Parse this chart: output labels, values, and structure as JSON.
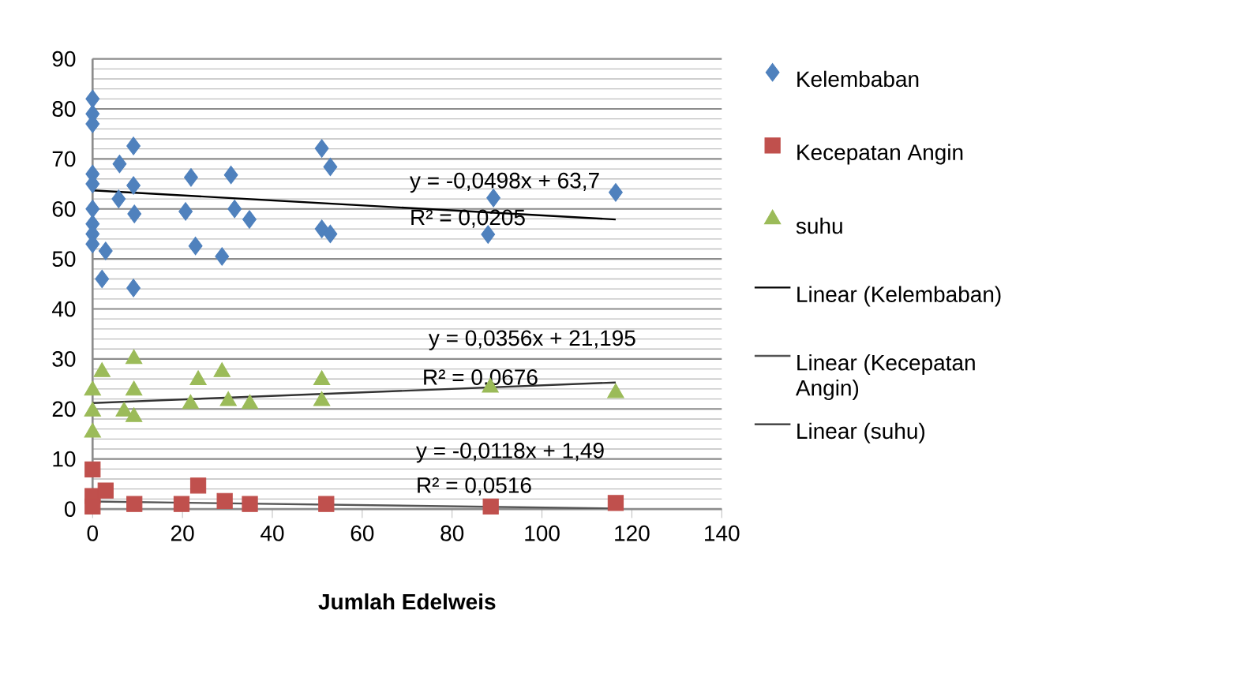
{
  "chart_data": {
    "type": "scatter",
    "xlabel": "Jumlah Edelweis",
    "xlim": [
      0,
      140
    ],
    "ylim": [
      0,
      90
    ],
    "xticks": [
      0,
      20,
      40,
      60,
      80,
      100,
      120,
      140
    ],
    "yticks": [
      0,
      10,
      20,
      30,
      40,
      50,
      60,
      70,
      80,
      90
    ],
    "grid": "y",
    "legend": "right",
    "series": [
      {
        "name": "Kelembaban",
        "marker": "diamond",
        "color": "#4f81bd",
        "x": [
          0,
          0,
          0,
          0,
          0,
          0,
          0,
          0,
          0,
          2.9,
          2.1,
          6,
          9.1,
          9.1,
          5.8,
          9.3,
          9.1,
          21.9,
          20.7,
          22.9,
          30.8,
          28.8,
          31.6,
          34.9,
          51,
          52.9,
          51,
          52.9,
          89.2,
          88,
          116.4
        ],
        "values": [
          82,
          79,
          77,
          67,
          65,
          60,
          57,
          55,
          53,
          51.6,
          46,
          69,
          72.6,
          64.7,
          62,
          59,
          44.2,
          66.3,
          59.5,
          52.6,
          66.8,
          50.5,
          60,
          57.9,
          72.1,
          68.4,
          56,
          55,
          62.2,
          54.9,
          63.3
        ]
      },
      {
        "name": "Kecepatan Angin",
        "marker": "square",
        "color": "#c0504d",
        "x": [
          0,
          0,
          2.9,
          9.3,
          19.8,
          23.5,
          29.4,
          35,
          52,
          0,
          88.6,
          116.4
        ],
        "values": [
          7.9,
          2.6,
          3.7,
          1,
          1,
          4.7,
          1.6,
          1,
          1,
          0.5,
          0.5,
          1.2
        ]
      },
      {
        "name": "suhu",
        "marker": "triangle",
        "color": "#9bbb59",
        "x": [
          2.1,
          0,
          0,
          0,
          9.2,
          9.2,
          7,
          9.2,
          23.5,
          21.8,
          28.8,
          30.2,
          35,
          51,
          51,
          88.5,
          116.4
        ],
        "values": [
          27.4,
          23.7,
          19.5,
          15.3,
          30,
          23.7,
          19.5,
          18.4,
          25.8,
          21,
          27.4,
          21.6,
          21,
          25.8,
          21.6,
          24.3,
          23.2
        ]
      },
      {
        "name": "Linear (Kelembaban)",
        "type": "line",
        "marker": "none",
        "color": "#000000",
        "x": [
          0,
          116.4
        ],
        "values": [
          63.7,
          57.9
        ]
      },
      {
        "name": "Linear (Kecepatan Angin)",
        "type": "line",
        "marker": "none",
        "color": "#555555",
        "x": [
          0,
          116.4
        ],
        "values": [
          1.5,
          0.1
        ]
      },
      {
        "name": "Linear (suhu)",
        "type": "line",
        "marker": "none",
        "color": "#333333",
        "x": [
          0,
          116.4
        ],
        "values": [
          21.2,
          25.3
        ]
      }
    ],
    "annotations": [
      "y = -0,0498x + 63,7",
      "R² = 0,0205",
      "y = 0,0356x + 21,195",
      "R² = 0,0676",
      "y = -0,0118x + 1,49",
      "R² = 0,0516"
    ]
  }
}
